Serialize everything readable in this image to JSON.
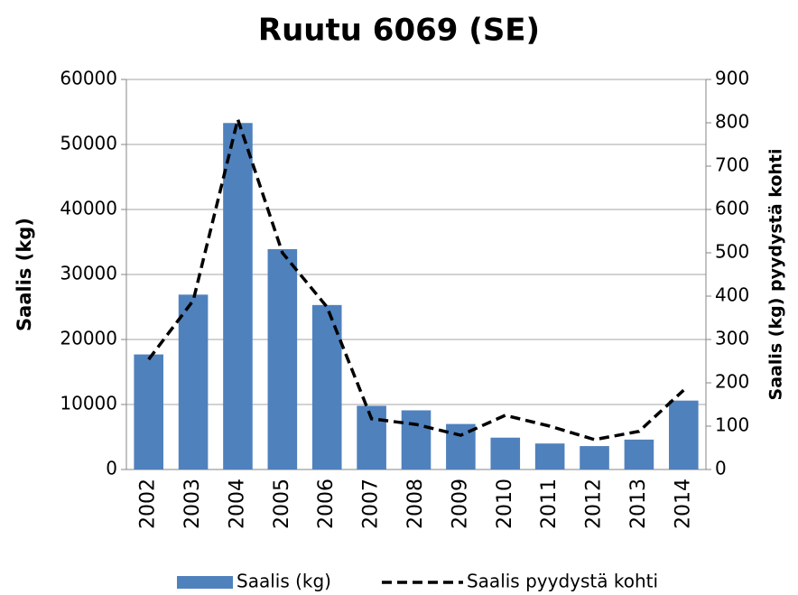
{
  "chart_data": {
    "type": "bar_line",
    "title": "Ruutu 6069 (SE)",
    "y_label": "Saalis (kg)",
    "y2_label": "Saalis (kg) pyydystä kohti",
    "categories": [
      "2002",
      "2003",
      "2004",
      "2005",
      "2006",
      "2007",
      "2008",
      "2009",
      "2010",
      "2011",
      "2012",
      "2013",
      "2014"
    ],
    "series": [
      {
        "name": "Saalis (kg)",
        "type": "bar",
        "color": "#4f81bd",
        "values": [
          17700,
          26900,
          53300,
          33900,
          25300,
          9800,
          9100,
          7000,
          4900,
          4000,
          3600,
          4600,
          10600
        ]
      },
      {
        "name": "Saalis pyydystä kohti",
        "type": "line",
        "axis": "y2",
        "color": "#000000",
        "dashed": true,
        "values": [
          254,
          390,
          808,
          500,
          375,
          117,
          104,
          79,
          125,
          100,
          69,
          88,
          183
        ]
      }
    ],
    "ylim": [
      0,
      60000
    ],
    "yticks": [
      0,
      10000,
      20000,
      30000,
      40000,
      50000,
      60000
    ],
    "y2lim": [
      0,
      900
    ],
    "y2ticks": [
      0,
      100,
      200,
      300,
      400,
      500,
      600,
      700,
      800,
      900
    ],
    "grid": true,
    "legend": "bottom"
  }
}
